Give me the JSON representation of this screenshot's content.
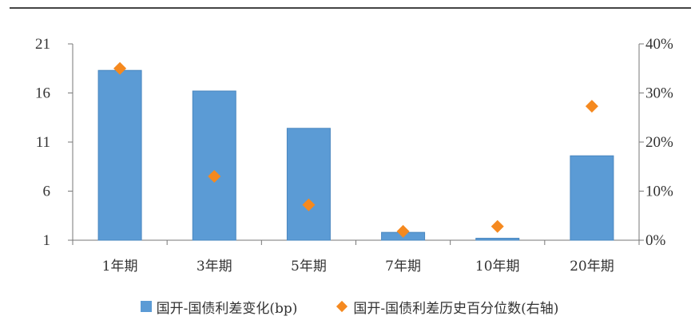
{
  "chart_data": {
    "type": "bar",
    "categories": [
      "1年期",
      "3年期",
      "5年期",
      "7年期",
      "10年期",
      "20年期"
    ],
    "series": [
      {
        "name": "国开-国债利差变化(bp)",
        "type": "bar",
        "axis": "left",
        "color": "#5B9BD5",
        "values": [
          18.3,
          16.2,
          12.4,
          1.8,
          1.2,
          9.6
        ]
      },
      {
        "name": "国开-国债利差历史百分位数(右轴)",
        "type": "scatter",
        "axis": "right",
        "color": "#F5891F",
        "marker": "diamond",
        "values": [
          35,
          13,
          7.2,
          1.8,
          2.8,
          27.3
        ]
      }
    ],
    "left_axis": {
      "ylim": [
        1,
        21
      ],
      "ticks": [
        "1",
        "6",
        "11",
        "16",
        "21"
      ]
    },
    "right_axis": {
      "ylim": [
        0,
        40
      ],
      "ticks": [
        "0%",
        "10%",
        "20%",
        "30%",
        "40%"
      ],
      "unit": "%"
    },
    "grid": false,
    "legend_position": "bottom"
  }
}
